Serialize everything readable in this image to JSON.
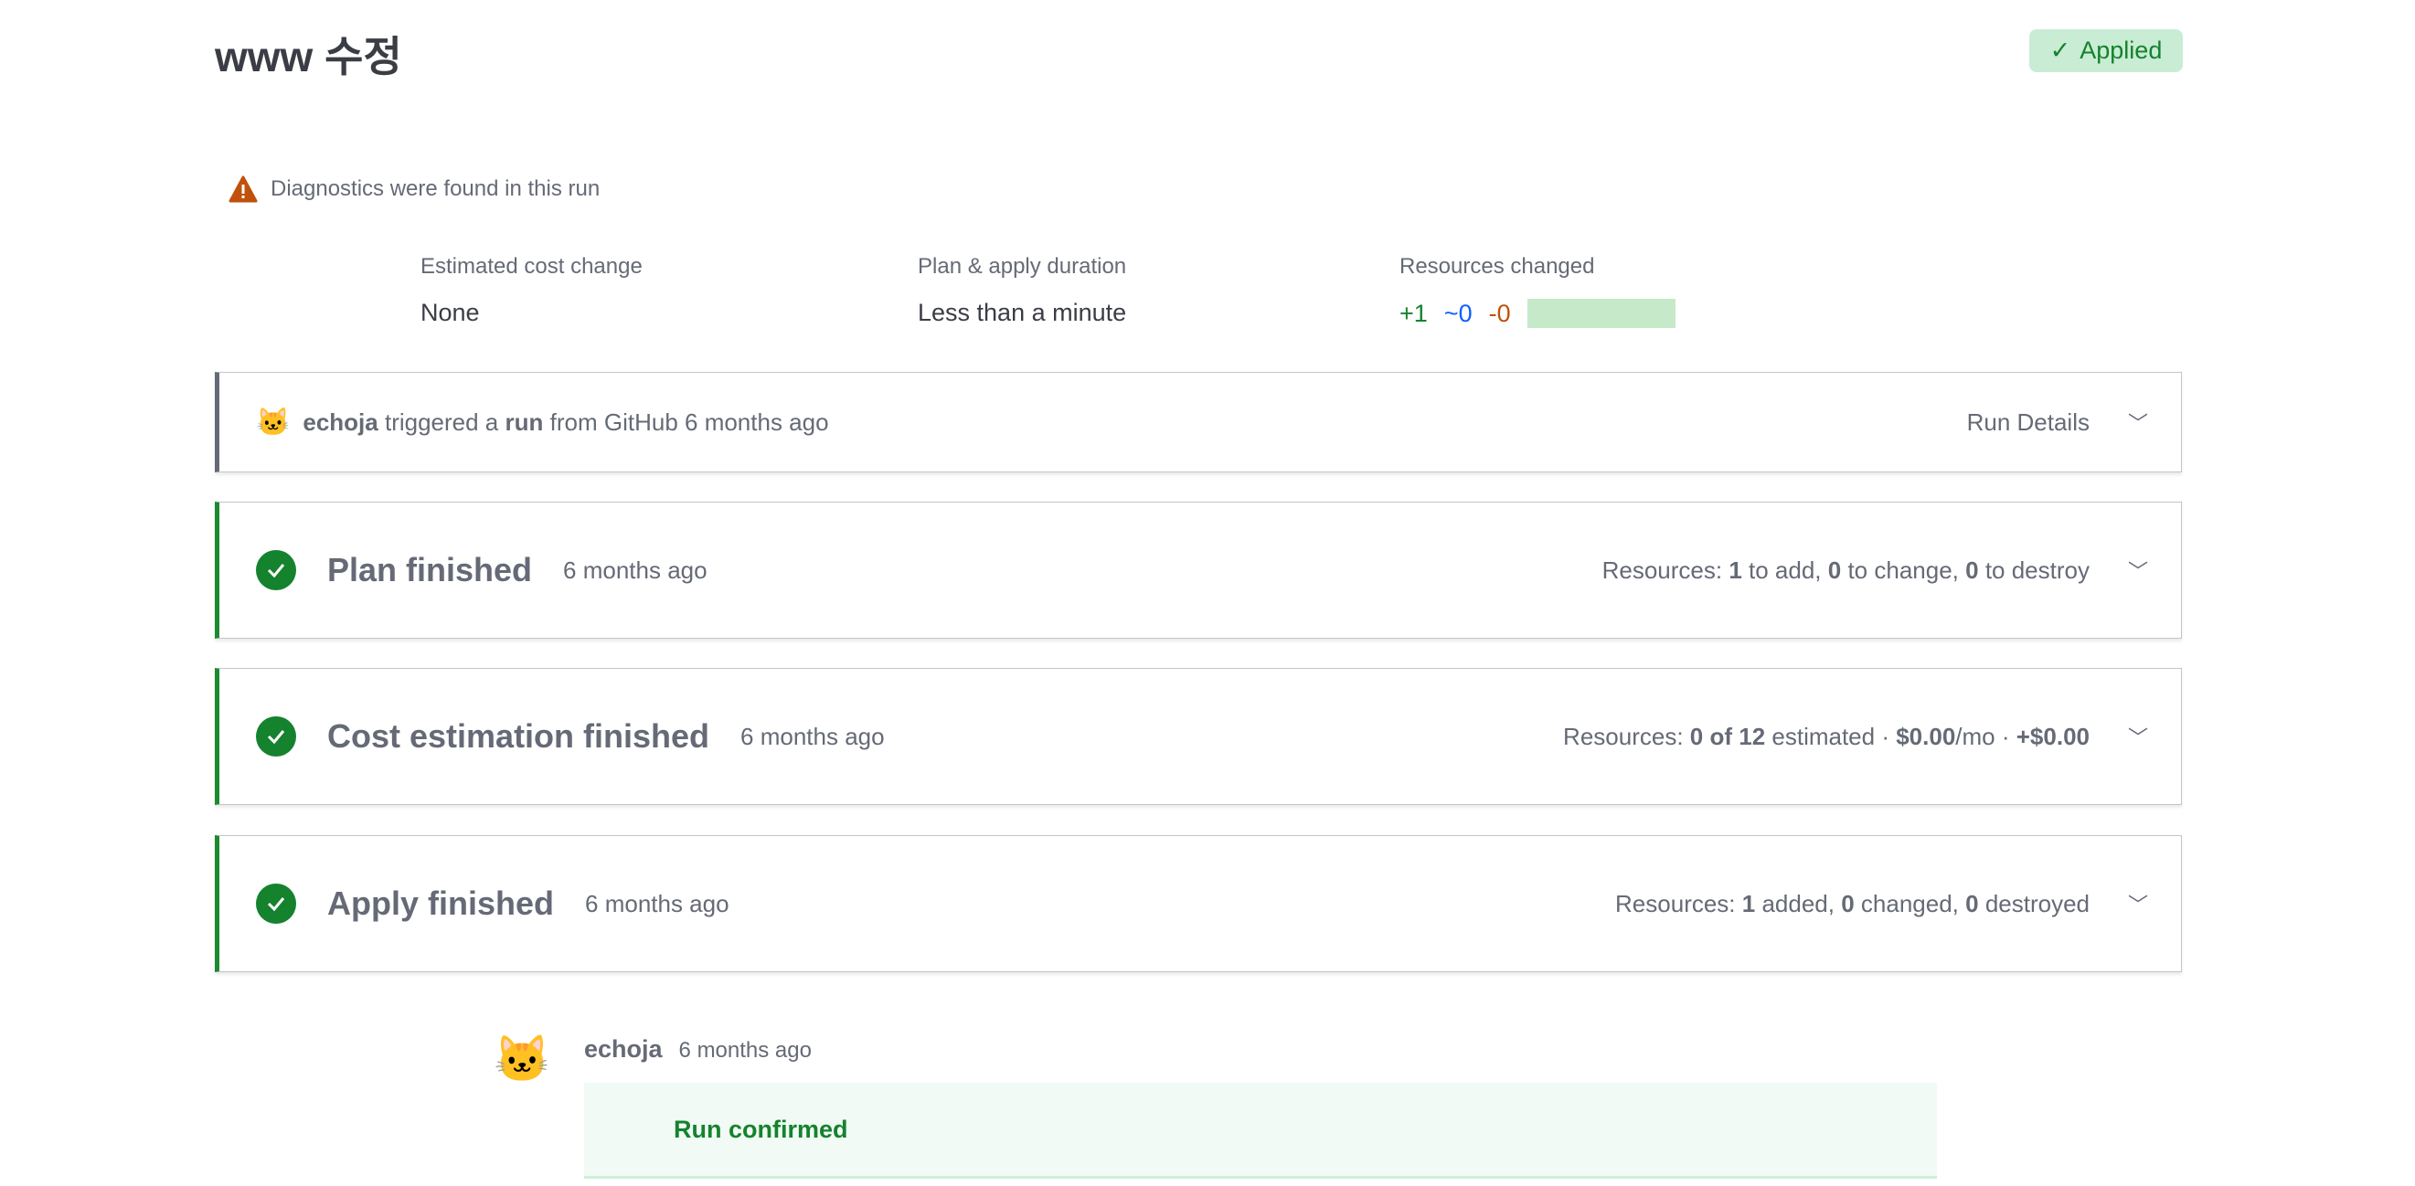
{
  "header": {
    "title": "www 수정",
    "status_badge": "Applied"
  },
  "diagnostics": {
    "message": "Diagnostics were found in this run"
  },
  "metrics": {
    "cost": {
      "label": "Estimated cost change",
      "value": "None"
    },
    "duration": {
      "label": "Plan & apply duration",
      "value": "Less than a minute"
    },
    "resources": {
      "label": "Resources changed",
      "added": "+1",
      "changed": "~0",
      "destroyed": "-0",
      "added_fraction": 1.0
    }
  },
  "trigger": {
    "user": "echoja",
    "text1": "triggered a",
    "run": "run",
    "text2": "from GitHub 6 months ago",
    "details": "Run Details"
  },
  "stages": [
    {
      "title": "Plan finished",
      "ago": "6 months ago",
      "r0": "Resources: ",
      "b1": "1",
      "t1": " to add, ",
      "b2": "0",
      "t2": " to change, ",
      "b3": "0",
      "t3": " to destroy"
    },
    {
      "title": "Cost estimation finished",
      "ago": "6 months ago",
      "r0": "Resources: ",
      "b1": "0 of 12",
      "t1": " estimated · ",
      "b2": "$0.00",
      "t2": "/mo · ",
      "b3": "+$0.00",
      "t3": ""
    },
    {
      "title": "Apply finished",
      "ago": "6 months ago",
      "r0": "Resources: ",
      "b1": "1",
      "t1": " added, ",
      "b2": "0",
      "t2": " changed, ",
      "b3": "0",
      "t3": " destroyed"
    }
  ],
  "comment": {
    "user": "echoja",
    "ago": "6 months ago",
    "message": "Run confirmed"
  },
  "colors": {
    "success": "#15822e",
    "warning": "#c0510c",
    "changed": "#1060ff",
    "applied_bg": "#c9ecd4"
  }
}
